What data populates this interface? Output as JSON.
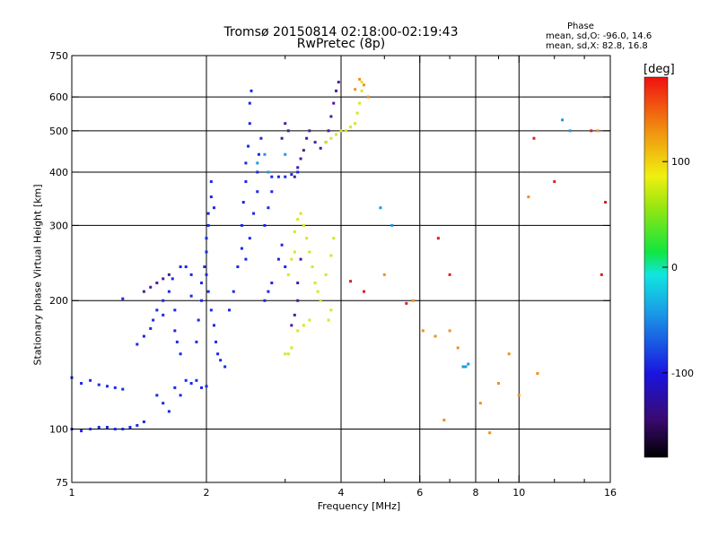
{
  "chart_data": {
    "type": "scatter",
    "title": "Tromsø 20150814 02:18:00-02:19:43",
    "subtitle": "RwPretec (8p)",
    "xlabel": "Frequency [MHz]",
    "ylabel": "Stationary phase Virtual Height [km]",
    "x_scale": "log",
    "y_scale": "log",
    "xlim": [
      1,
      16
    ],
    "ylim": [
      75,
      750
    ],
    "x_ticks": [
      1,
      2,
      4,
      6,
      8,
      10,
      16
    ],
    "x_tick_labels": [
      "1",
      "2",
      "4",
      "6",
      "8",
      "10",
      "16"
    ],
    "x_minor_ticks": [
      3,
      5,
      7,
      9,
      12,
      14
    ],
    "y_ticks": [
      75,
      100,
      200,
      300,
      400,
      500,
      600,
      750
    ],
    "y_tick_labels": [
      "75",
      "100",
      "200",
      "300",
      "400",
      "500",
      "600",
      "750"
    ],
    "x_gridlines": [
      2,
      4,
      6,
      8,
      10
    ],
    "y_gridlines": [
      100,
      200,
      300,
      400,
      500,
      600
    ],
    "grid": true,
    "colorbar": {
      "label": "[deg]",
      "range": [
        -180,
        180
      ],
      "ticks": [
        100,
        0,
        -100
      ],
      "tick_labels": [
        "100",
        "0",
        "-100"
      ]
    },
    "phase_stats": {
      "title": "Phase",
      "o_line": "mean, sd,O: -96.0, 14.6",
      "x_line": "mean, sd,X:  82.8, 16.8"
    },
    "series": [
      {
        "name": "",
        "color": "#1a28e6",
        "points": [
          [
            1.0,
            132
          ],
          [
            1.05,
            128
          ],
          [
            1.1,
            130
          ],
          [
            1.15,
            127
          ],
          [
            1.2,
            126
          ],
          [
            1.25,
            125
          ],
          [
            1.3,
            124
          ],
          [
            1.0,
            100
          ],
          [
            1.05,
            99
          ],
          [
            1.1,
            100
          ],
          [
            1.15,
            101
          ],
          [
            1.2,
            101
          ],
          [
            1.25,
            100
          ],
          [
            1.3,
            100
          ],
          [
            1.35,
            101
          ],
          [
            1.4,
            102
          ],
          [
            1.45,
            104
          ],
          [
            1.3,
            202
          ],
          [
            1.4,
            158
          ],
          [
            1.45,
            165
          ],
          [
            1.5,
            172
          ],
          [
            1.52,
            180
          ],
          [
            1.55,
            190
          ],
          [
            1.6,
            200
          ],
          [
            1.6,
            185
          ],
          [
            1.65,
            210
          ],
          [
            1.68,
            225
          ],
          [
            1.7,
            190
          ],
          [
            1.7,
            170
          ],
          [
            1.72,
            160
          ],
          [
            1.75,
            150
          ],
          [
            1.75,
            240
          ],
          [
            1.8,
            240
          ],
          [
            1.85,
            230
          ],
          [
            1.85,
            205
          ],
          [
            1.55,
            120
          ],
          [
            1.6,
            115
          ],
          [
            1.65,
            110
          ],
          [
            1.7,
            125
          ],
          [
            1.75,
            120
          ],
          [
            1.8,
            130
          ],
          [
            1.85,
            128
          ],
          [
            1.9,
            130
          ],
          [
            1.95,
            125
          ],
          [
            2.0,
            126
          ],
          [
            1.9,
            160
          ],
          [
            1.92,
            180
          ],
          [
            1.95,
            200
          ],
          [
            1.95,
            220
          ],
          [
            1.98,
            240
          ],
          [
            2.0,
            260
          ],
          [
            2.0,
            280
          ],
          [
            2.02,
            300
          ],
          [
            2.02,
            320
          ],
          [
            2.05,
            350
          ],
          [
            2.05,
            380
          ],
          [
            2.08,
            330
          ],
          [
            2.0,
            230
          ],
          [
            2.02,
            210
          ],
          [
            2.05,
            190
          ],
          [
            2.08,
            175
          ],
          [
            2.1,
            160
          ],
          [
            2.12,
            150
          ],
          [
            2.15,
            145
          ],
          [
            2.2,
            140
          ],
          [
            2.25,
            190
          ],
          [
            2.3,
            210
          ],
          [
            2.35,
            240
          ],
          [
            2.4,
            265
          ],
          [
            2.4,
            300
          ],
          [
            2.42,
            340
          ],
          [
            2.45,
            380
          ],
          [
            2.45,
            420
          ],
          [
            2.48,
            460
          ],
          [
            2.5,
            520
          ],
          [
            2.5,
            580
          ],
          [
            2.52,
            620
          ],
          [
            2.45,
            250
          ],
          [
            2.5,
            280
          ],
          [
            2.55,
            320
          ],
          [
            2.6,
            360
          ],
          [
            2.6,
            400
          ],
          [
            2.62,
            440
          ],
          [
            2.65,
            480
          ],
          [
            2.7,
            300
          ],
          [
            2.75,
            330
          ],
          [
            2.8,
            360
          ],
          [
            2.8,
            390
          ],
          [
            2.9,
            390
          ],
          [
            3.0,
            390
          ],
          [
            3.1,
            395
          ],
          [
            3.2,
            400
          ],
          [
            2.7,
            200
          ],
          [
            2.75,
            210
          ],
          [
            2.8,
            220
          ],
          [
            2.9,
            250
          ],
          [
            2.95,
            270
          ],
          [
            3.0,
            240
          ]
        ]
      },
      {
        "name": "",
        "color": "#4a1aa0",
        "points": [
          [
            1.45,
            210
          ],
          [
            1.5,
            215
          ],
          [
            1.55,
            220
          ],
          [
            1.6,
            225
          ],
          [
            1.65,
            230
          ],
          [
            3.1,
            175
          ],
          [
            3.15,
            185
          ],
          [
            3.2,
            200
          ],
          [
            3.2,
            220
          ],
          [
            3.25,
            250
          ],
          [
            3.15,
            390
          ],
          [
            3.2,
            410
          ],
          [
            3.25,
            430
          ],
          [
            3.3,
            450
          ],
          [
            3.35,
            480
          ],
          [
            3.4,
            500
          ],
          [
            3.5,
            470
          ],
          [
            3.6,
            455
          ],
          [
            3.7,
            470
          ],
          [
            3.75,
            500
          ],
          [
            3.8,
            540
          ],
          [
            3.85,
            580
          ],
          [
            3.9,
            620
          ],
          [
            3.95,
            650
          ],
          [
            3.0,
            520
          ],
          [
            3.05,
            500
          ],
          [
            2.95,
            480
          ]
        ]
      },
      {
        "name": "",
        "color": "#d8e620",
        "points": [
          [
            3.05,
            230
          ],
          [
            3.1,
            250
          ],
          [
            3.15,
            260
          ],
          [
            3.15,
            290
          ],
          [
            3.2,
            310
          ],
          [
            3.25,
            320
          ],
          [
            3.3,
            300
          ],
          [
            3.35,
            280
          ],
          [
            3.4,
            260
          ],
          [
            3.45,
            240
          ],
          [
            3.5,
            220
          ],
          [
            3.55,
            210
          ],
          [
            3.6,
            200
          ],
          [
            3.7,
            230
          ],
          [
            3.8,
            255
          ],
          [
            3.85,
            280
          ],
          [
            3.8,
            190
          ],
          [
            3.75,
            180
          ],
          [
            3.7,
            470
          ],
          [
            3.8,
            480
          ],
          [
            3.9,
            490
          ],
          [
            4.0,
            500
          ],
          [
            4.1,
            500
          ],
          [
            4.2,
            510
          ],
          [
            4.3,
            520
          ],
          [
            4.35,
            550
          ],
          [
            4.4,
            580
          ],
          [
            4.45,
            620
          ],
          [
            4.45,
            650
          ],
          [
            3.0,
            150
          ],
          [
            3.05,
            150
          ],
          [
            3.1,
            155
          ],
          [
            3.2,
            170
          ],
          [
            3.3,
            175
          ],
          [
            3.4,
            180
          ]
        ]
      },
      {
        "name": "",
        "color": "#1a9ae0",
        "points": [
          [
            7.5,
            140
          ],
          [
            7.6,
            140
          ],
          [
            7.7,
            142
          ],
          [
            2.6,
            420
          ],
          [
            2.7,
            440
          ],
          [
            2.75,
            400
          ],
          [
            3.0,
            440
          ],
          [
            4.9,
            330
          ],
          [
            5.2,
            300
          ],
          [
            12.5,
            530
          ],
          [
            13.0,
            500
          ]
        ]
      },
      {
        "name": "",
        "color": "#f09020",
        "points": [
          [
            4.4,
            660
          ],
          [
            4.5,
            640
          ],
          [
            4.6,
            600
          ],
          [
            4.3,
            625
          ],
          [
            5.0,
            230
          ],
          [
            5.8,
            200
          ],
          [
            6.1,
            170
          ],
          [
            6.5,
            165
          ],
          [
            6.8,
            105
          ],
          [
            7.0,
            170
          ],
          [
            7.3,
            155
          ],
          [
            8.2,
            115
          ],
          [
            8.6,
            98
          ],
          [
            9.0,
            128
          ],
          [
            9.5,
            150
          ],
          [
            10.0,
            120
          ],
          [
            10.5,
            350
          ],
          [
            11.0,
            135
          ],
          [
            15.0,
            500
          ]
        ]
      },
      {
        "name": "",
        "color": "#d82020",
        "points": [
          [
            4.2,
            222
          ],
          [
            4.5,
            210
          ],
          [
            5.6,
            197
          ],
          [
            6.6,
            280
          ],
          [
            7.0,
            230
          ],
          [
            10.8,
            480
          ],
          [
            12.0,
            380
          ],
          [
            14.5,
            500
          ],
          [
            15.3,
            230
          ],
          [
            15.6,
            340
          ]
        ]
      }
    ]
  }
}
